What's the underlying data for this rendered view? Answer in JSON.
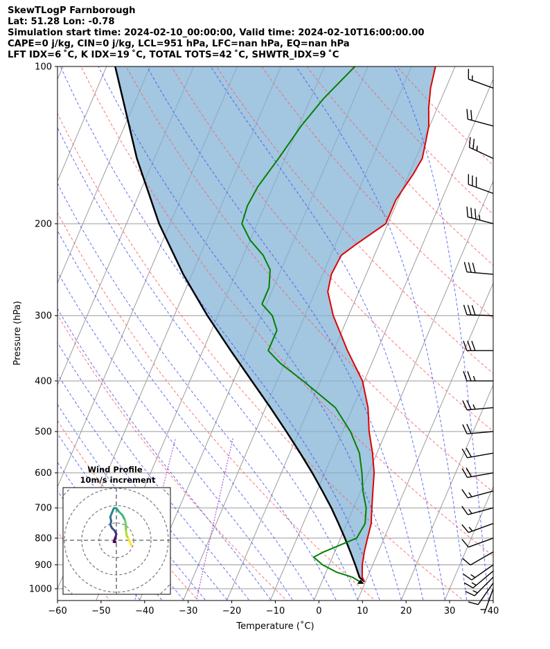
{
  "header": {
    "line1": "SkewTLogP Farnborough",
    "line2": "Lat: 51.28   Lon: -0.78",
    "line3": "Simulation start time: 2024-02-10_00:00:00, Valid time: 2024-02-10T16:00:00.00",
    "line4": "CAPE=0 j/kg, CIN=0 j/kg, LCL=951 hPa, LFC=nan hPa, EQ=nan hPa",
    "line5": "LFT IDX=6 ˚C, K IDX=19 ˚C, TOTAL TOTS=42 ˚C, SHWTR_IDX=9 ˚C"
  },
  "colors": {
    "temperature": "#e00000",
    "dewpoint": "#008000",
    "parcel": "#000000",
    "cape_fill": "#7fb0d6",
    "dry_adiabat": "#ff5a5a",
    "moist_adiabat": "#3a4df0",
    "mixing_ratio": "#9933cc",
    "isotherm": "#9a9a9a"
  },
  "chart_data": [
    {
      "type": "line",
      "subtype": "skew-T log-P",
      "xlabel": "Temperature (˚C)",
      "ylabel": "Pressure (hPa)",
      "xlim": [
        -60,
        40
      ],
      "ylim": [
        1050,
        100
      ],
      "yscale": "log",
      "xticks": [
        -60,
        -50,
        -40,
        -30,
        -20,
        -10,
        0,
        10,
        20,
        30,
        40
      ],
      "xtick_labels": [
        "−60",
        "−50",
        "−40",
        "−30",
        "−20",
        "−10",
        "0",
        "10",
        "20",
        "30",
        "40"
      ],
      "yticks": [
        1000,
        900,
        800,
        700,
        600,
        500,
        400,
        300,
        200,
        100
      ],
      "ytick_labels": [
        "1000",
        "900",
        "800",
        "700",
        "600",
        "500",
        "400",
        "300",
        "200",
        "100"
      ],
      "grid": true,
      "series": [
        {
          "key": "temperature",
          "points": [
            [
              970,
              9.8
            ],
            [
              950,
              8.8
            ],
            [
              900,
              7.6
            ],
            [
              850,
              6.8
            ],
            [
              800,
              6.2
            ],
            [
              750,
              5.6
            ],
            [
              700,
              4.2
            ],
            [
              650,
              2.8
            ],
            [
              600,
              1.3
            ],
            [
              550,
              -1.0
            ],
            [
              500,
              -3.9
            ],
            [
              450,
              -6.5
            ],
            [
              400,
              -10.4
            ],
            [
              350,
              -16.8
            ],
            [
              300,
              -23.5
            ],
            [
              270,
              -27.1
            ],
            [
              250,
              -28.0
            ],
            [
              230,
              -27.6
            ],
            [
              220,
              -25.5
            ],
            [
              200,
              -20.5
            ],
            [
              180,
              -20.5
            ],
            [
              160,
              -19.0
            ],
            [
              150,
              -18.5
            ],
            [
              140,
              -19.3
            ],
            [
              130,
              -20.2
            ],
            [
              120,
              -22.0
            ],
            [
              110,
              -23.5
            ],
            [
              100,
              -24.5
            ]
          ]
        },
        {
          "key": "dewpoint",
          "points": [
            [
              970,
              8.8
            ],
            [
              950,
              6.5
            ],
            [
              930,
              2.5
            ],
            [
              900,
              -1.5
            ],
            [
              870,
              -4.3
            ],
            [
              850,
              -2.5
            ],
            [
              800,
              3.7
            ],
            [
              750,
              4.2
            ],
            [
              700,
              2.9
            ],
            [
              650,
              0.5
            ],
            [
              600,
              -1.5
            ],
            [
              550,
              -4.0
            ],
            [
              500,
              -8.2
            ],
            [
              450,
              -14.0
            ],
            [
              400,
              -24.0
            ],
            [
              370,
              -31.0
            ],
            [
              350,
              -35.0
            ],
            [
              320,
              -35.0
            ],
            [
              300,
              -37.5
            ],
            [
              285,
              -41.0
            ],
            [
              265,
              -41.0
            ],
            [
              245,
              -42.5
            ],
            [
              230,
              -45.5
            ],
            [
              215,
              -50.0
            ],
            [
              200,
              -53.5
            ],
            [
              185,
              -54.0
            ],
            [
              170,
              -53.5
            ],
            [
              150,
              -51.5
            ],
            [
              130,
              -49.5
            ],
            [
              115,
              -47.0
            ],
            [
              100,
              -43.0
            ]
          ]
        },
        {
          "key": "parcel",
          "points": [
            [
              970,
              9.8
            ],
            [
              951,
              8.2
            ],
            [
              900,
              6.0
            ],
            [
              850,
              3.6
            ],
            [
              800,
              1.0
            ],
            [
              750,
              -1.9
            ],
            [
              700,
              -5.1
            ],
            [
              650,
              -8.8
            ],
            [
              600,
              -12.9
            ],
            [
              550,
              -17.6
            ],
            [
              500,
              -22.9
            ],
            [
              450,
              -28.9
            ],
            [
              400,
              -35.8
            ],
            [
              350,
              -43.6
            ],
            [
              300,
              -52.4
            ],
            [
              250,
              -62.0
            ],
            [
              200,
              -72.5
            ],
            [
              150,
              -84.0
            ],
            [
              100,
              -98.0
            ]
          ]
        }
      ],
      "wind_barbs": [
        {
          "p": 1000,
          "speed_kt": 5,
          "dir_deg": 200
        },
        {
          "p": 975,
          "speed_kt": 10,
          "dir_deg": 215
        },
        {
          "p": 950,
          "speed_kt": 15,
          "dir_deg": 225
        },
        {
          "p": 925,
          "speed_kt": 15,
          "dir_deg": 230
        },
        {
          "p": 900,
          "speed_kt": 15,
          "dir_deg": 235
        },
        {
          "p": 850,
          "speed_kt": 10,
          "dir_deg": 240
        },
        {
          "p": 800,
          "speed_kt": 10,
          "dir_deg": 250
        },
        {
          "p": 750,
          "speed_kt": 15,
          "dir_deg": 250
        },
        {
          "p": 700,
          "speed_kt": 15,
          "dir_deg": 255
        },
        {
          "p": 650,
          "speed_kt": 15,
          "dir_deg": 255
        },
        {
          "p": 600,
          "speed_kt": 20,
          "dir_deg": 260
        },
        {
          "p": 550,
          "speed_kt": 20,
          "dir_deg": 260
        },
        {
          "p": 500,
          "speed_kt": 20,
          "dir_deg": 265
        },
        {
          "p": 450,
          "speed_kt": 25,
          "dir_deg": 265
        },
        {
          "p": 400,
          "speed_kt": 25,
          "dir_deg": 270
        },
        {
          "p": 350,
          "speed_kt": 30,
          "dir_deg": 270
        },
        {
          "p": 300,
          "speed_kt": 30,
          "dir_deg": 272
        },
        {
          "p": 250,
          "speed_kt": 30,
          "dir_deg": 275
        },
        {
          "p": 200,
          "speed_kt": 35,
          "dir_deg": 285
        },
        {
          "p": 175,
          "speed_kt": 30,
          "dir_deg": 290
        },
        {
          "p": 150,
          "speed_kt": 25,
          "dir_deg": 295
        },
        {
          "p": 130,
          "speed_kt": 20,
          "dir_deg": 285
        },
        {
          "p": 110,
          "speed_kt": 15,
          "dir_deg": 290
        }
      ]
    },
    {
      "type": "scatter",
      "subtype": "hodograph",
      "title": "Wind Profile",
      "subtitle": "10m/s increment",
      "ring_increment_ms": 10,
      "colormap": "viridis",
      "points_uv": [
        [
          -0.5,
          -1.0
        ],
        [
          -1.5,
          -1.0
        ],
        [
          -1.0,
          0.5
        ],
        [
          -0.5,
          2.0
        ],
        [
          0.0,
          3.5
        ],
        [
          -1.0,
          5.5
        ],
        [
          -2.5,
          7.0
        ],
        [
          -3.5,
          9.0
        ],
        [
          -3.0,
          11.0
        ],
        [
          -3.5,
          13.5
        ],
        [
          -2.5,
          16.0
        ],
        [
          -1.5,
          18.5
        ],
        [
          0.0,
          18.5
        ],
        [
          1.5,
          16.5
        ],
        [
          3.5,
          14.5
        ],
        [
          5.0,
          11.5
        ],
        [
          5.5,
          8.5
        ],
        [
          5.5,
          5.5
        ],
        [
          6.0,
          2.5
        ],
        [
          7.0,
          1.0
        ],
        [
          8.0,
          -1.5
        ],
        [
          8.5,
          -3.0
        ]
      ]
    }
  ]
}
